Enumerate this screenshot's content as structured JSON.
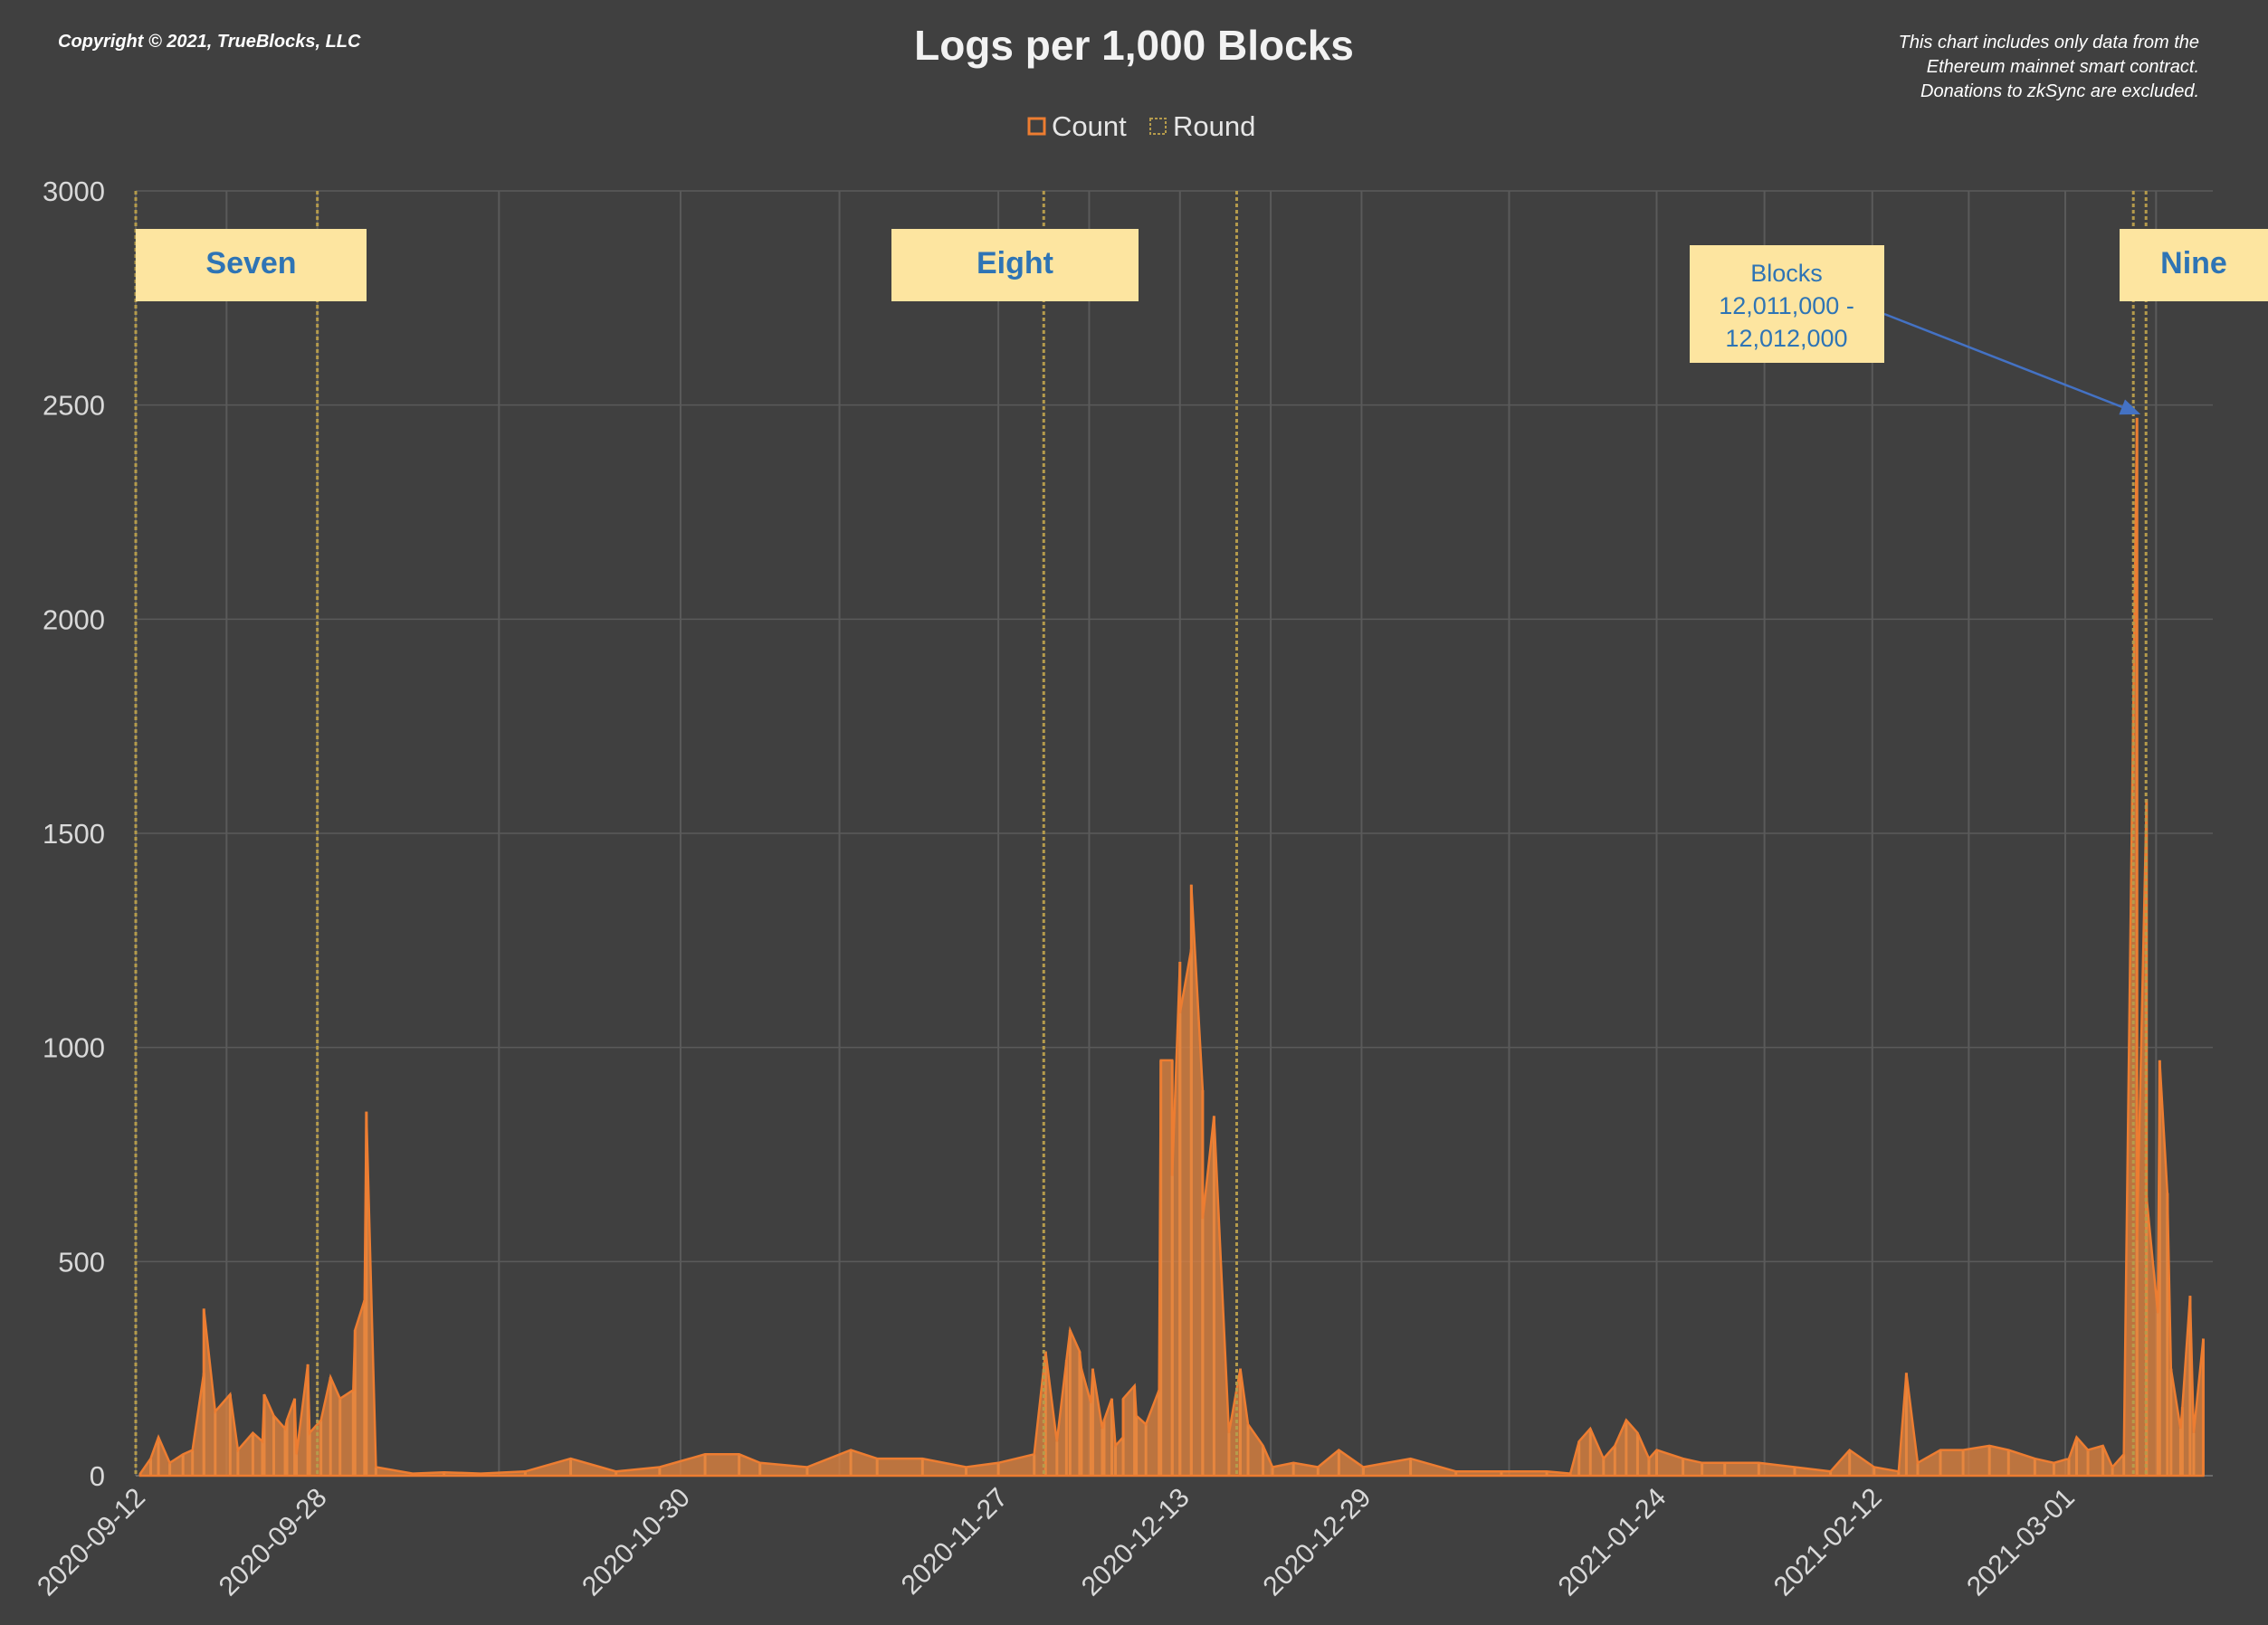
{
  "copyright": "Copyright © 2021, TrueBlocks, LLC",
  "note_lines": [
    "This chart includes only data from the",
    "Ethereum mainnet smart contract.",
    "Donations to zkSync are excluded."
  ],
  "callout": {
    "lines": [
      "Blocks",
      "12,011,000 -",
      "12,012,000"
    ],
    "target_date": "2021-03-07",
    "target_value": 2470
  },
  "colors": {
    "background": "#404040",
    "count": "#ed7d31",
    "count_fill": "#e5863f",
    "round_line": "#b59b4c",
    "round_box": "#fde5a0",
    "round_text": "#2e74b5",
    "grid": "#5a5a5a",
    "arrow": "#4472c4"
  },
  "chart_data": {
    "type": "area",
    "title": "Logs per 1,000 Blocks",
    "legend": [
      {
        "name": "Count",
        "color": "#ed7d31"
      },
      {
        "name": "Round",
        "color": "#b59b4c"
      }
    ],
    "legend_position": "top-center",
    "ylim": [
      0,
      3000
    ],
    "yticks": [
      0,
      500,
      1000,
      1500,
      2000,
      2500,
      3000
    ],
    "xlim": [
      "2020-09-12",
      "2021-03-13"
    ],
    "xticks": [
      "2020-09-12",
      "2020-09-28",
      "2020-10-30",
      "2020-11-27",
      "2020-12-13",
      "2020-12-29",
      "2021-01-24",
      "2021-02-12",
      "2021-03-01"
    ],
    "grid": true,
    "rounds": [
      {
        "name": "Seven",
        "start": "2020-09-12",
        "end": "2020-09-28"
      },
      {
        "name": "Eight",
        "start": "2020-12-01",
        "end": "2020-12-18"
      },
      {
        "name": "Nine",
        "start": "2021-03-07",
        "end": "2021-03-13"
      }
    ],
    "series": [
      {
        "name": "Count",
        "points": [
          [
            "2020-09-12",
            5
          ],
          [
            "2020-09-13",
            40
          ],
          [
            "2020-09-14",
            90
          ],
          [
            "2020-09-15",
            30
          ],
          [
            "2020-09-16",
            50
          ],
          [
            "2020-09-17",
            60
          ],
          [
            "2020-09-18",
            240
          ],
          [
            "2020-09-18",
            390
          ],
          [
            "2020-09-19",
            150
          ],
          [
            "2020-09-20",
            190
          ],
          [
            "2020-09-21",
            60
          ],
          [
            "2020-09-22",
            100
          ],
          [
            "2020-09-23",
            80
          ],
          [
            "2020-09-23",
            190
          ],
          [
            "2020-09-24",
            140
          ],
          [
            "2020-09-25",
            130
          ],
          [
            "2020-09-25",
            110
          ],
          [
            "2020-09-26",
            50
          ],
          [
            "2020-09-26",
            180
          ],
          [
            "2020-09-27",
            100
          ],
          [
            "2020-09-27",
            260
          ],
          [
            "2020-09-28",
            130
          ],
          [
            "2020-09-29",
            230
          ],
          [
            "2020-09-30",
            180
          ],
          [
            "2020-10-01",
            340
          ],
          [
            "2020-10-01",
            200
          ],
          [
            "2020-10-02",
            410
          ],
          [
            "2020-10-02",
            850
          ],
          [
            "2020-10-03",
            20
          ],
          [
            "2020-10-06",
            5
          ],
          [
            "2020-10-09",
            8
          ],
          [
            "2020-10-12",
            5
          ],
          [
            "2020-10-16",
            10
          ],
          [
            "2020-10-20",
            40
          ],
          [
            "2020-10-24",
            10
          ],
          [
            "2020-10-28",
            20
          ],
          [
            "2020-11-01",
            50
          ],
          [
            "2020-11-04",
            50
          ],
          [
            "2020-11-06",
            30
          ],
          [
            "2020-11-10",
            20
          ],
          [
            "2020-11-14",
            60
          ],
          [
            "2020-11-16",
            40
          ],
          [
            "2020-11-20",
            40
          ],
          [
            "2020-11-24",
            20
          ],
          [
            "2020-11-27",
            30
          ],
          [
            "2020-11-30",
            50
          ],
          [
            "2020-12-01",
            290
          ],
          [
            "2020-12-02",
            80
          ],
          [
            "2020-12-03",
            270
          ],
          [
            "2020-12-03",
            340
          ],
          [
            "2020-12-04",
            250
          ],
          [
            "2020-12-04",
            290
          ],
          [
            "2020-12-05",
            170
          ],
          [
            "2020-12-05",
            250
          ],
          [
            "2020-12-06",
            110
          ],
          [
            "2020-12-06",
            130
          ],
          [
            "2020-12-07",
            70
          ],
          [
            "2020-12-07",
            180
          ],
          [
            "2020-12-08",
            90
          ],
          [
            "2020-12-08",
            180
          ],
          [
            "2020-12-09",
            140
          ],
          [
            "2020-12-09",
            210
          ],
          [
            "2020-12-10",
            120
          ],
          [
            "2020-12-11",
            970
          ],
          [
            "2020-12-11",
            200
          ],
          [
            "2020-12-12",
            970
          ],
          [
            "2020-12-12",
            700
          ],
          [
            "2020-12-13",
            1200
          ],
          [
            "2020-12-13",
            1080
          ],
          [
            "2020-12-14",
            1230
          ],
          [
            "2020-12-14",
            1380
          ],
          [
            "2020-12-15",
            900
          ],
          [
            "2020-12-15",
            600
          ],
          [
            "2020-12-16",
            840
          ],
          [
            "2020-12-17",
            100
          ],
          [
            "2020-12-18",
            250
          ],
          [
            "2020-12-19",
            120
          ],
          [
            "2020-12-20",
            70
          ],
          [
            "2020-12-21",
            20
          ],
          [
            "2020-12-23",
            30
          ],
          [
            "2020-12-25",
            20
          ],
          [
            "2020-12-27",
            60
          ],
          [
            "2020-12-29",
            20
          ],
          [
            "2021-01-02",
            40
          ],
          [
            "2021-01-06",
            10
          ],
          [
            "2021-01-10",
            10
          ],
          [
            "2021-01-14",
            10
          ],
          [
            "2021-01-16",
            5
          ],
          [
            "2021-01-17",
            80
          ],
          [
            "2021-01-18",
            110
          ],
          [
            "2021-01-19",
            40
          ],
          [
            "2021-01-20",
            70
          ],
          [
            "2021-01-21",
            130
          ],
          [
            "2021-01-22",
            100
          ],
          [
            "2021-01-23",
            40
          ],
          [
            "2021-01-24",
            60
          ],
          [
            "2021-01-26",
            40
          ],
          [
            "2021-01-28",
            30
          ],
          [
            "2021-01-30",
            30
          ],
          [
            "2021-02-02",
            30
          ],
          [
            "2021-02-05",
            20
          ],
          [
            "2021-02-08",
            10
          ],
          [
            "2021-02-10",
            60
          ],
          [
            "2021-02-12",
            20
          ],
          [
            "2021-02-14",
            10
          ],
          [
            "2021-02-15",
            240
          ],
          [
            "2021-02-16",
            30
          ],
          [
            "2021-02-18",
            60
          ],
          [
            "2021-02-20",
            60
          ],
          [
            "2021-02-22",
            70
          ],
          [
            "2021-02-24",
            60
          ],
          [
            "2021-02-26",
            40
          ],
          [
            "2021-02-28",
            30
          ],
          [
            "2021-03-01",
            40
          ],
          [
            "2021-03-02",
            90
          ],
          [
            "2021-03-03",
            60
          ],
          [
            "2021-03-04",
            70
          ],
          [
            "2021-03-05",
            20
          ],
          [
            "2021-03-06",
            50
          ],
          [
            "2021-03-07",
            2470
          ],
          [
            "2021-03-07",
            550
          ],
          [
            "2021-03-08",
            1580
          ],
          [
            "2021-03-08",
            650
          ],
          [
            "2021-03-09",
            380
          ],
          [
            "2021-03-09",
            970
          ],
          [
            "2021-03-10",
            660
          ],
          [
            "2021-03-10",
            250
          ],
          [
            "2021-03-11",
            110
          ],
          [
            "2021-03-11",
            160
          ],
          [
            "2021-03-12",
            420
          ],
          [
            "2021-03-12",
            100
          ],
          [
            "2021-03-13",
            320
          ]
        ]
      }
    ]
  }
}
